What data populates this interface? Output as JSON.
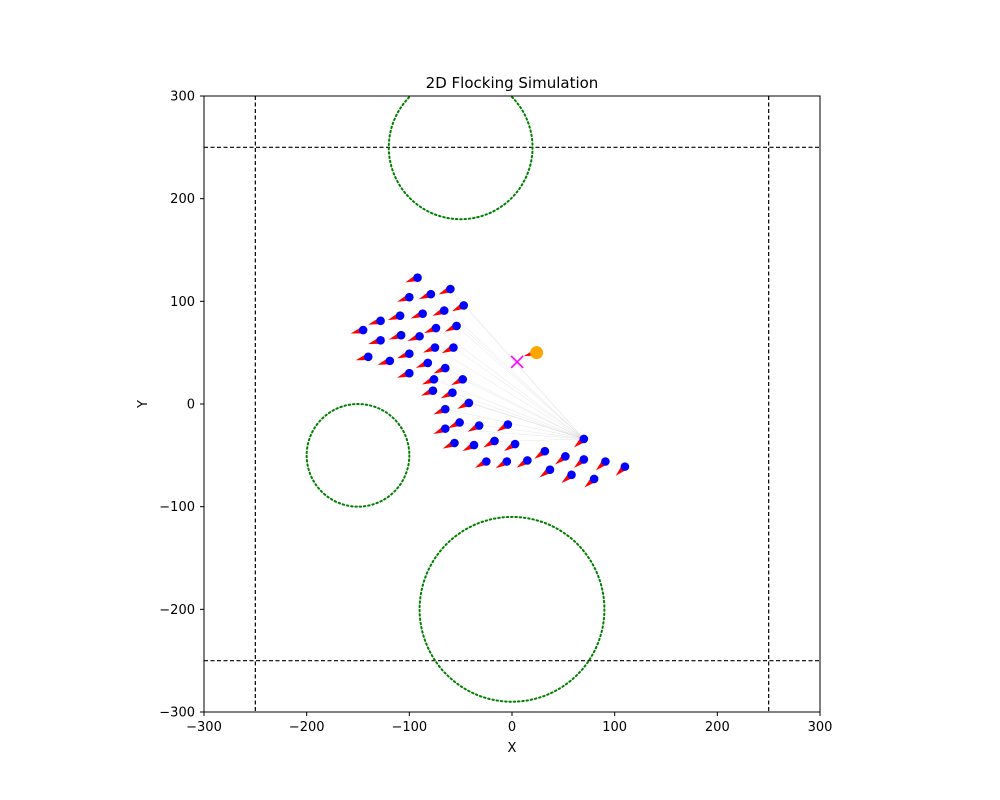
{
  "chart_data": {
    "type": "scatter",
    "title": "2D Flocking Simulation",
    "xlabel": "X",
    "ylabel": "Y",
    "xlim": [
      -300,
      300
    ],
    "ylim": [
      -300,
      300
    ],
    "xticks": [
      -300,
      -200,
      -100,
      0,
      100,
      200,
      300
    ],
    "yticks": [
      -300,
      -200,
      -100,
      0,
      100,
      200,
      300
    ],
    "xtick_labels": [
      "−300",
      "−200",
      "−100",
      "0",
      "100",
      "200",
      "300"
    ],
    "ytick_labels": [
      "−300",
      "−200",
      "−100",
      "0",
      "100",
      "200",
      "300"
    ],
    "grid": false,
    "boundaries": {
      "x": [
        -250,
        250
      ],
      "y": [
        -250,
        250
      ],
      "style": "dashed",
      "color": "#000000"
    },
    "obstacles": [
      {
        "cx": -50,
        "cy": 250,
        "r": 70
      },
      {
        "cx": -150,
        "cy": -50,
        "r": 50
      },
      {
        "cx": 0,
        "cy": -200,
        "r": 90
      }
    ],
    "obstacle_color": "#008000",
    "goal": {
      "x": 5,
      "y": 41,
      "marker": "x",
      "color": "#ff00ff"
    },
    "leader": {
      "x": 24,
      "y": 50,
      "color": "#ffa500"
    },
    "boid_color": "#0000ff",
    "heading_color": "#ff0000",
    "connection_color": "#c8c8c8",
    "boids": [
      {
        "x": -92,
        "y": 123
      },
      {
        "x": -60,
        "y": 112
      },
      {
        "x": -100,
        "y": 104
      },
      {
        "x": -79,
        "y": 107
      },
      {
        "x": -47,
        "y": 96
      },
      {
        "x": -66,
        "y": 91
      },
      {
        "x": -87,
        "y": 88
      },
      {
        "x": -109,
        "y": 86
      },
      {
        "x": -128,
        "y": 81
      },
      {
        "x": -145,
        "y": 72
      },
      {
        "x": -74,
        "y": 74
      },
      {
        "x": -54,
        "y": 76
      },
      {
        "x": -90,
        "y": 66
      },
      {
        "x": -108,
        "y": 67
      },
      {
        "x": -128,
        "y": 62
      },
      {
        "x": -75,
        "y": 55
      },
      {
        "x": -57,
        "y": 55
      },
      {
        "x": -100,
        "y": 49
      },
      {
        "x": -140,
        "y": 46
      },
      {
        "x": -119,
        "y": 42
      },
      {
        "x": -82,
        "y": 40
      },
      {
        "x": -65,
        "y": 35
      },
      {
        "x": -100,
        "y": 30
      },
      {
        "x": -76,
        "y": 24
      },
      {
        "x": -48,
        "y": 24
      },
      {
        "x": -77,
        "y": 13
      },
      {
        "x": -58,
        "y": 11
      },
      {
        "x": -42,
        "y": 1
      },
      {
        "x": -65,
        "y": -5
      },
      {
        "x": -51,
        "y": -18
      },
      {
        "x": -32,
        "y": -21
      },
      {
        "x": -65,
        "y": -24
      },
      {
        "x": -4,
        "y": -20
      },
      {
        "x": -56,
        "y": -38
      },
      {
        "x": -17,
        "y": -36
      },
      {
        "x": -37,
        "y": -40
      },
      {
        "x": 3,
        "y": -39
      },
      {
        "x": 32,
        "y": -46
      },
      {
        "x": 70,
        "y": -34
      },
      {
        "x": -25,
        "y": -56
      },
      {
        "x": -5,
        "y": -56
      },
      {
        "x": 15,
        "y": -55
      },
      {
        "x": 52,
        "y": -51
      },
      {
        "x": 70,
        "y": -54
      },
      {
        "x": 91,
        "y": -56
      },
      {
        "x": 110,
        "y": -61
      },
      {
        "x": 37,
        "y": -64
      },
      {
        "x": 58,
        "y": -69
      },
      {
        "x": 80,
        "y": -73
      }
    ]
  }
}
